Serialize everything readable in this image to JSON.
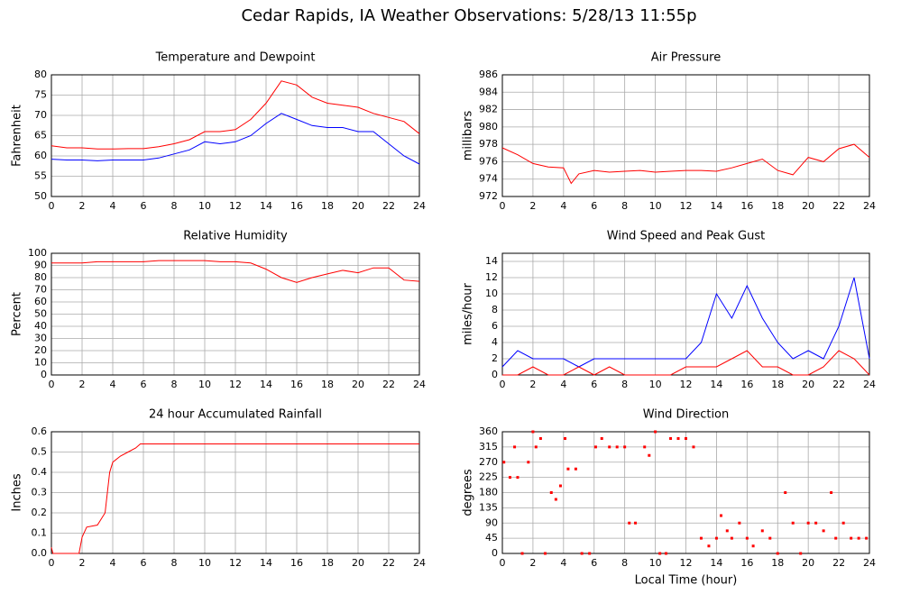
{
  "title": "Cedar Rapids, IA Weather Observations: 5/28/13 11:55p",
  "chart_data": [
    {
      "type": "line",
      "title": "Temperature and Dewpoint",
      "y_label": "Fahrenheit",
      "x": [
        0,
        1,
        2,
        3,
        4,
        5,
        6,
        7,
        8,
        9,
        10,
        11,
        12,
        13,
        14,
        15,
        16,
        17,
        18,
        19,
        20,
        21,
        22,
        23,
        24
      ],
      "xlim": [
        0,
        24
      ],
      "xticks": [
        0,
        2,
        4,
        6,
        8,
        10,
        12,
        14,
        16,
        18,
        20,
        22,
        24
      ],
      "ylim": [
        50,
        80
      ],
      "yticks": [
        50,
        55,
        60,
        65,
        70,
        75,
        80
      ],
      "grid": true,
      "series": [
        {
          "color": "#ff0000",
          "values": [
            62.5,
            62,
            62,
            61.7,
            61.7,
            61.8,
            61.8,
            62.3,
            63,
            64,
            66,
            66,
            66.5,
            69,
            73,
            78.5,
            77.5,
            74.5,
            73,
            72.5,
            72,
            70.5,
            69.5,
            68.5,
            65.5
          ]
        },
        {
          "color": "#0000ff",
          "values": [
            59.2,
            59,
            59,
            58.8,
            59,
            59,
            59,
            59.5,
            60.5,
            61.5,
            63.5,
            63,
            63.5,
            65,
            68,
            70.5,
            69,
            67.5,
            67,
            67,
            66,
            66,
            63,
            60,
            58
          ]
        }
      ]
    },
    {
      "type": "line",
      "title": "Air Pressure",
      "y_label": "millibars",
      "x": [
        0,
        1,
        2,
        3,
        4,
        4.5,
        5,
        6,
        7,
        8,
        9,
        10,
        11,
        12,
        13,
        14,
        15,
        16,
        17,
        18,
        19,
        20,
        21,
        22,
        23,
        24
      ],
      "xlim": [
        0,
        24
      ],
      "xticks": [
        0,
        2,
        4,
        6,
        8,
        10,
        12,
        14,
        16,
        18,
        20,
        22,
        24
      ],
      "ylim": [
        972,
        986
      ],
      "yticks": [
        972,
        974,
        976,
        978,
        980,
        982,
        984,
        986
      ],
      "grid": true,
      "series": [
        {
          "color": "#ff0000",
          "values": [
            977.6,
            976.8,
            975.8,
            975.4,
            975.3,
            973.5,
            974.6,
            975,
            974.8,
            974.9,
            975,
            974.8,
            974.9,
            975,
            975,
            974.9,
            975.3,
            975.8,
            976.3,
            975,
            974.5,
            976.5,
            976,
            977.5,
            978,
            976.5
          ]
        }
      ]
    },
    {
      "type": "line",
      "title": "Relative Humidity",
      "y_label": "Percent",
      "x": [
        0,
        1,
        2,
        3,
        4,
        5,
        6,
        7,
        8,
        9,
        10,
        11,
        12,
        13,
        14,
        15,
        16,
        17,
        18,
        19,
        20,
        21,
        22,
        23,
        24
      ],
      "xlim": [
        0,
        24
      ],
      "xticks": [
        0,
        2,
        4,
        6,
        8,
        10,
        12,
        14,
        16,
        18,
        20,
        22,
        24
      ],
      "ylim": [
        0,
        100
      ],
      "yticks": [
        0,
        10,
        20,
        30,
        40,
        50,
        60,
        70,
        80,
        90,
        100
      ],
      "grid": true,
      "series": [
        {
          "color": "#ff0000",
          "values": [
            92,
            92,
            92,
            93,
            93,
            93,
            93,
            94,
            94,
            94,
            94,
            93,
            93,
            92,
            87,
            80,
            76,
            80,
            83,
            86,
            84,
            88,
            88,
            78,
            77
          ]
        }
      ]
    },
    {
      "type": "line",
      "title": "Wind Speed and Peak Gust",
      "y_label": "miles/hour",
      "x": [
        0,
        1,
        2,
        3,
        4,
        5,
        6,
        7,
        8,
        9,
        10,
        11,
        12,
        13,
        14,
        15,
        16,
        17,
        18,
        19,
        20,
        21,
        22,
        23,
        24
      ],
      "xlim": [
        0,
        24
      ],
      "xticks": [
        0,
        2,
        4,
        6,
        8,
        10,
        12,
        14,
        16,
        18,
        20,
        22,
        24
      ],
      "ylim": [
        0,
        15
      ],
      "yticks": [
        0,
        2,
        4,
        6,
        8,
        10,
        12,
        14
      ],
      "grid": true,
      "series": [
        {
          "color": "#0000ff",
          "values": [
            1,
            3,
            2,
            2,
            2,
            1,
            2,
            2,
            2,
            2,
            2,
            2,
            2,
            4,
            10,
            7,
            11,
            7,
            4,
            2,
            3,
            2,
            6,
            12,
            2
          ]
        },
        {
          "color": "#ff0000",
          "values": [
            0,
            0,
            1,
            0,
            0,
            1,
            0,
            1,
            0,
            0,
            0,
            0,
            1,
            1,
            1,
            2,
            3,
            1,
            1,
            0,
            0,
            1,
            3,
            2,
            0
          ]
        }
      ]
    },
    {
      "type": "line",
      "title": "24 hour Accumulated Rainfall",
      "y_label": "Inches",
      "x": [
        0,
        0.1,
        1.8,
        2,
        2.3,
        3,
        3.5,
        3.8,
        4,
        4.5,
        5,
        5.5,
        5.8,
        24
      ],
      "xlim": [
        0,
        24
      ],
      "xticks": [
        0,
        2,
        4,
        6,
        8,
        10,
        12,
        14,
        16,
        18,
        20,
        22,
        24
      ],
      "ylim": [
        0,
        0.6
      ],
      "yticks": [
        {
          "value": 0,
          "label": "0.0"
        },
        0.1,
        0.2,
        0.3,
        0.4,
        0.5,
        0.6
      ],
      "grid": true,
      "series": [
        {
          "color": "#ff0000",
          "values": [
            0.03,
            0,
            0,
            0.08,
            0.13,
            0.14,
            0.2,
            0.4,
            0.45,
            0.48,
            0.5,
            0.52,
            0.54,
            0.54
          ]
        }
      ]
    },
    {
      "type": "scatter",
      "title": "Wind Direction",
      "y_label": "degrees",
      "x_label": "Local Time (hour)",
      "x": [
        0.1,
        0.5,
        0.8,
        1.0,
        1.3,
        1.7,
        2,
        2.2,
        2.5,
        2.8,
        3.2,
        3.5,
        3.8,
        4.1,
        4.3,
        4.8,
        5.2,
        5.7,
        6.1,
        6.5,
        7,
        7.5,
        8,
        8.3,
        8.7,
        9.3,
        9.6,
        10,
        10.3,
        10.7,
        11,
        11.5,
        12,
        12.5,
        13,
        13.5,
        14,
        14.3,
        14.7,
        15,
        15.5,
        16,
        16.4,
        17,
        17.5,
        18,
        18.5,
        19,
        19.5,
        20,
        20.5,
        21,
        21.5,
        21.8,
        22.3,
        22.8,
        23.3,
        23.8
      ],
      "xlim": [
        0,
        24
      ],
      "xticks": [
        0,
        2,
        4,
        6,
        8,
        10,
        12,
        14,
        16,
        18,
        20,
        22,
        24
      ],
      "ylim": [
        0,
        360
      ],
      "yticks": [
        0,
        45,
        90,
        135,
        180,
        225,
        270,
        315,
        360
      ],
      "grid": true,
      "series": [
        {
          "color": "#ff0000",
          "values": [
            270,
            225,
            315,
            225,
            0,
            270,
            360,
            315,
            340,
            0,
            180,
            160,
            200,
            340,
            250,
            250,
            0,
            0,
            315,
            340,
            315,
            315,
            315,
            90,
            90,
            315,
            290,
            360,
            0,
            0,
            340,
            340,
            340,
            315,
            45,
            22,
            45,
            112,
            67,
            45,
            90,
            45,
            22,
            67,
            45,
            0,
            180,
            90,
            0,
            90,
            90,
            67,
            180,
            45,
            90,
            45,
            45,
            45
          ]
        }
      ]
    }
  ]
}
